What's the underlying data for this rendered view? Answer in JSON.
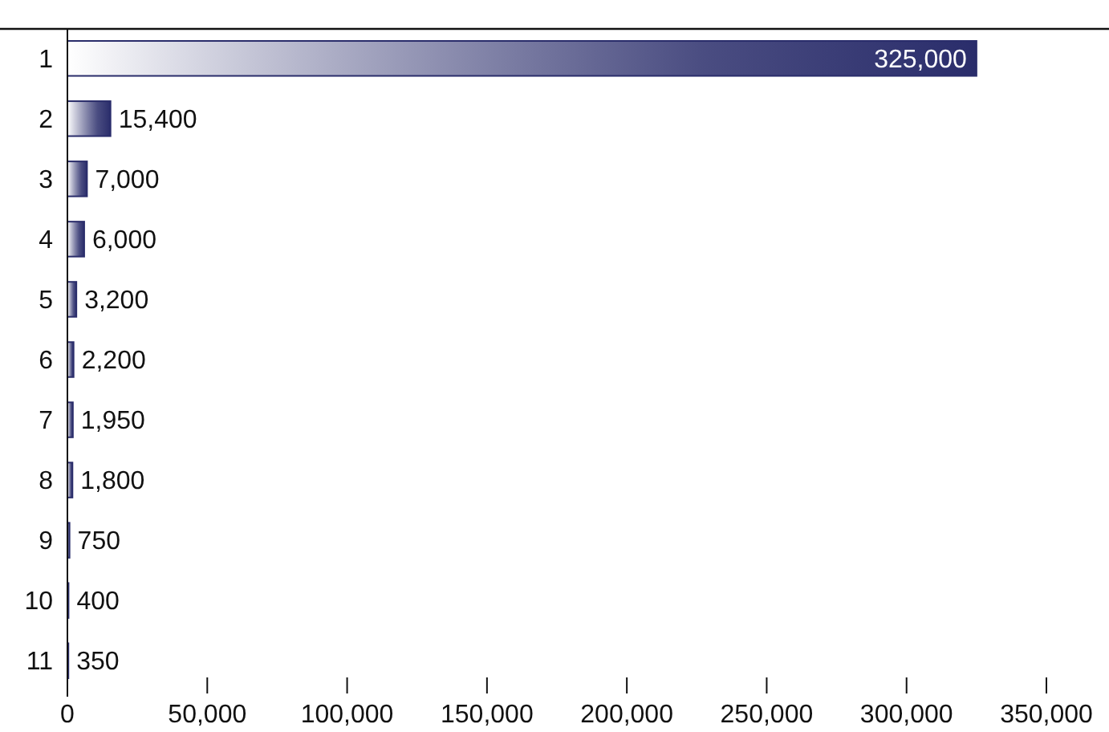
{
  "chart_data": {
    "type": "bar",
    "orientation": "horizontal",
    "categories": [
      "1",
      "2",
      "3",
      "4",
      "5",
      "6",
      "7",
      "8",
      "9",
      "10",
      "11"
    ],
    "values": [
      325000,
      15400,
      7000,
      6000,
      3200,
      2200,
      1950,
      1800,
      750,
      400,
      350
    ],
    "color": "#2a2d6b",
    "xlim": [
      0,
      350000
    ],
    "xticks": [
      {
        "value": 0,
        "label": "0"
      },
      {
        "value": 50000,
        "label": "50,000"
      },
      {
        "value": 100000,
        "label": "100,000"
      },
      {
        "value": 150000,
        "label": "150,000"
      },
      {
        "value": 200000,
        "label": "200,000"
      },
      {
        "value": 250000,
        "label": "250,000"
      },
      {
        "value": 300000,
        "label": "300,000"
      },
      {
        "value": 350000,
        "label": "350,000"
      }
    ],
    "value_labels": [
      "325,000",
      "15,400",
      "7,000",
      "6,000",
      "3,200",
      "2,200",
      "1,950",
      "1,800",
      "750",
      "400",
      "350"
    ]
  }
}
